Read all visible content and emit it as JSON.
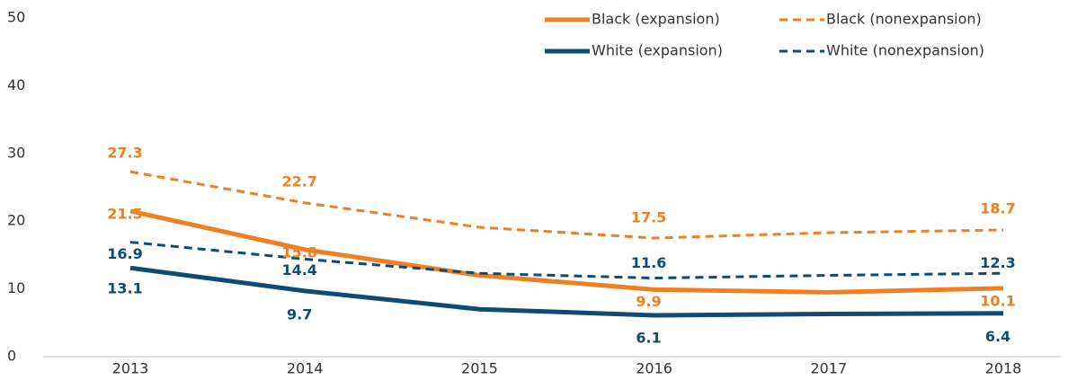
{
  "chart_data": {
    "type": "line",
    "categories": [
      "2013",
      "2014",
      "2015",
      "2016",
      "2017",
      "2018"
    ],
    "series": [
      {
        "name": "Black (expansion)",
        "color": "#f07f22",
        "dash": false,
        "values": [
          21.5,
          15.8,
          12.0,
          9.9,
          9.5,
          10.1
        ],
        "value_labels": [
          "21.5",
          "15.8",
          null,
          "9.9",
          null,
          "10.1"
        ]
      },
      {
        "name": "Black (nonexpansion)",
        "color": "#f07f22",
        "dash": true,
        "values": [
          27.3,
          22.7,
          19.1,
          17.5,
          18.3,
          18.7
        ],
        "value_labels": [
          "27.3",
          "22.7",
          null,
          "17.5",
          null,
          "18.7"
        ]
      },
      {
        "name": "White (expansion)",
        "color": "#0f4c75",
        "dash": false,
        "values": [
          13.1,
          9.7,
          7.0,
          6.1,
          6.3,
          6.4
        ],
        "value_labels": [
          "13.1",
          "9.7",
          null,
          "6.1",
          null,
          "6.4"
        ]
      },
      {
        "name": "White (nonexpansion)",
        "color": "#0f4c75",
        "dash": true,
        "values": [
          16.9,
          14.4,
          12.3,
          11.6,
          12.0,
          12.3
        ],
        "value_labels": [
          "16.9",
          "14.4",
          null,
          "11.6",
          null,
          "12.3"
        ]
      }
    ],
    "ylim": [
      0,
      50
    ],
    "yticks": [
      0,
      10,
      20,
      30,
      40,
      50
    ],
    "grid": false,
    "legend": "top-right"
  }
}
